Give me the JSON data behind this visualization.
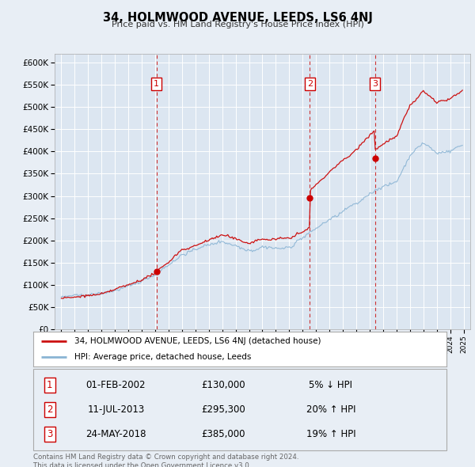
{
  "title": "34, HOLMWOOD AVENUE, LEEDS, LS6 4NJ",
  "subtitle": "Price paid vs. HM Land Registry's House Price Index (HPI)",
  "background_color": "#e8eef5",
  "plot_bg_color": "#dce6f1",
  "red_line_label": "34, HOLMWOOD AVENUE, LEEDS, LS6 4NJ (detached house)",
  "blue_line_label": "HPI: Average price, detached house, Leeds",
  "footer": "Contains HM Land Registry data © Crown copyright and database right 2024.\nThis data is licensed under the Open Government Licence v3.0.",
  "sales": [
    {
      "num": 1,
      "date": "01-FEB-2002",
      "price": 130000,
      "pct": "5%",
      "dir": "↓",
      "vs": "HPI",
      "x": 2002.09
    },
    {
      "num": 2,
      "date": "11-JUL-2013",
      "price": 295300,
      "pct": "20%",
      "dir": "↑",
      "vs": "HPI",
      "x": 2013.53
    },
    {
      "num": 3,
      "date": "24-MAY-2018",
      "price": 385000,
      "pct": "19%",
      "dir": "↑",
      "vs": "HPI",
      "x": 2018.39
    }
  ],
  "ylim": [
    0,
    620000
  ],
  "yticks": [
    0,
    50000,
    100000,
    150000,
    200000,
    250000,
    300000,
    350000,
    400000,
    450000,
    500000,
    550000,
    600000
  ],
  "xlim": [
    1994.5,
    2025.5
  ],
  "seed": 42
}
